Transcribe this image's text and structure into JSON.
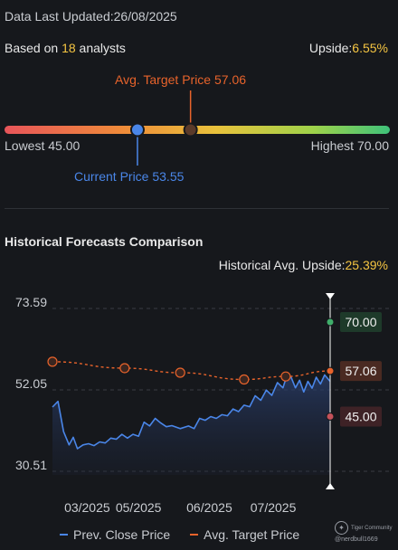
{
  "header": {
    "updated_label": "Data Last Updated:",
    "updated_date": "26/08/2025",
    "based_prefix": "Based on ",
    "analyst_count": "18",
    "based_suffix": " analysts",
    "upside_label": "Upside:",
    "upside_value": "6.55%"
  },
  "range_bar": {
    "lowest_label": "Lowest 45.00",
    "highest_label": "Highest 70.00",
    "avg_target_label": "Avg. Target Price 57.06",
    "current_label": "Current Price 53.55",
    "low": 45.0,
    "high": 70.0,
    "avg_target": 57.06,
    "current": 53.55,
    "colors": {
      "avg_target": "#e8632b",
      "current": "#4a86e8"
    }
  },
  "section": {
    "title": "Historical Forecasts Comparison",
    "hist_upside_label": "Historical Avg. Upside:",
    "hist_upside_value": "25.39%"
  },
  "legend": {
    "close_label": "Prev. Close Price",
    "target_label": "Avg. Target Price"
  },
  "watermark": {
    "brand": "Tiger Community",
    "user": "@nerdbull1669"
  },
  "chart_data": {
    "type": "line",
    "ylim": [
      30.51,
      73.59
    ],
    "y_ticks": [
      73.59,
      52.05,
      30.51
    ],
    "x_ticks": [
      {
        "label": "03/2025",
        "t": 0.125
      },
      {
        "label": "05/2025",
        "t": 0.31
      },
      {
        "label": "06/2025",
        "t": 0.565
      },
      {
        "label": "07/2025",
        "t": 0.795
      }
    ],
    "series": [
      {
        "name": "Prev. Close Price",
        "color": "#4a86e8",
        "points": [
          [
            0.0,
            47.5
          ],
          [
            0.02,
            49.0
          ],
          [
            0.04,
            41.0
          ],
          [
            0.06,
            37.5
          ],
          [
            0.075,
            39.5
          ],
          [
            0.09,
            36.5
          ],
          [
            0.11,
            37.5
          ],
          [
            0.13,
            37.8
          ],
          [
            0.15,
            37.3
          ],
          [
            0.17,
            38.3
          ],
          [
            0.19,
            38.0
          ],
          [
            0.21,
            39.3
          ],
          [
            0.23,
            39.0
          ],
          [
            0.25,
            40.3
          ],
          [
            0.27,
            39.3
          ],
          [
            0.29,
            40.3
          ],
          [
            0.31,
            39.8
          ],
          [
            0.33,
            43.5
          ],
          [
            0.35,
            42.5
          ],
          [
            0.37,
            44.5
          ],
          [
            0.39,
            43.3
          ],
          [
            0.41,
            42.3
          ],
          [
            0.43,
            42.6
          ],
          [
            0.46,
            41.8
          ],
          [
            0.49,
            42.5
          ],
          [
            0.51,
            41.8
          ],
          [
            0.53,
            44.5
          ],
          [
            0.55,
            44.0
          ],
          [
            0.57,
            45.0
          ],
          [
            0.59,
            44.5
          ],
          [
            0.61,
            45.5
          ],
          [
            0.63,
            45.2
          ],
          [
            0.65,
            47.0
          ],
          [
            0.67,
            46.3
          ],
          [
            0.69,
            48.0
          ],
          [
            0.71,
            47.6
          ],
          [
            0.73,
            50.5
          ],
          [
            0.75,
            49.3
          ],
          [
            0.77,
            52.0
          ],
          [
            0.79,
            50.6
          ],
          [
            0.81,
            54.0
          ],
          [
            0.83,
            52.6
          ],
          [
            0.845,
            56.0
          ],
          [
            0.86,
            55.3
          ],
          [
            0.875,
            52.6
          ],
          [
            0.89,
            54.6
          ],
          [
            0.905,
            51.5
          ],
          [
            0.92,
            54.3
          ],
          [
            0.935,
            52.5
          ],
          [
            0.95,
            55.4
          ],
          [
            0.965,
            53.6
          ],
          [
            0.98,
            56.0
          ],
          [
            1.0,
            54.3
          ]
        ]
      },
      {
        "name": "Avg. Target Price",
        "color": "#e8632b",
        "points": [
          [
            0.0,
            59.5
          ],
          [
            0.26,
            57.8
          ],
          [
            0.46,
            56.6
          ],
          [
            0.69,
            54.8
          ],
          [
            0.84,
            55.6
          ],
          [
            1.0,
            57.06
          ]
        ]
      }
    ],
    "side_labels": {
      "high": {
        "text": "70.00",
        "value": 70.0,
        "color": "#3fae6a"
      },
      "avg": {
        "text": "57.06",
        "value": 57.06,
        "color": "#e8632b"
      },
      "low": {
        "text": "45.00",
        "value": 45.0,
        "color": "#c4525a"
      }
    }
  }
}
